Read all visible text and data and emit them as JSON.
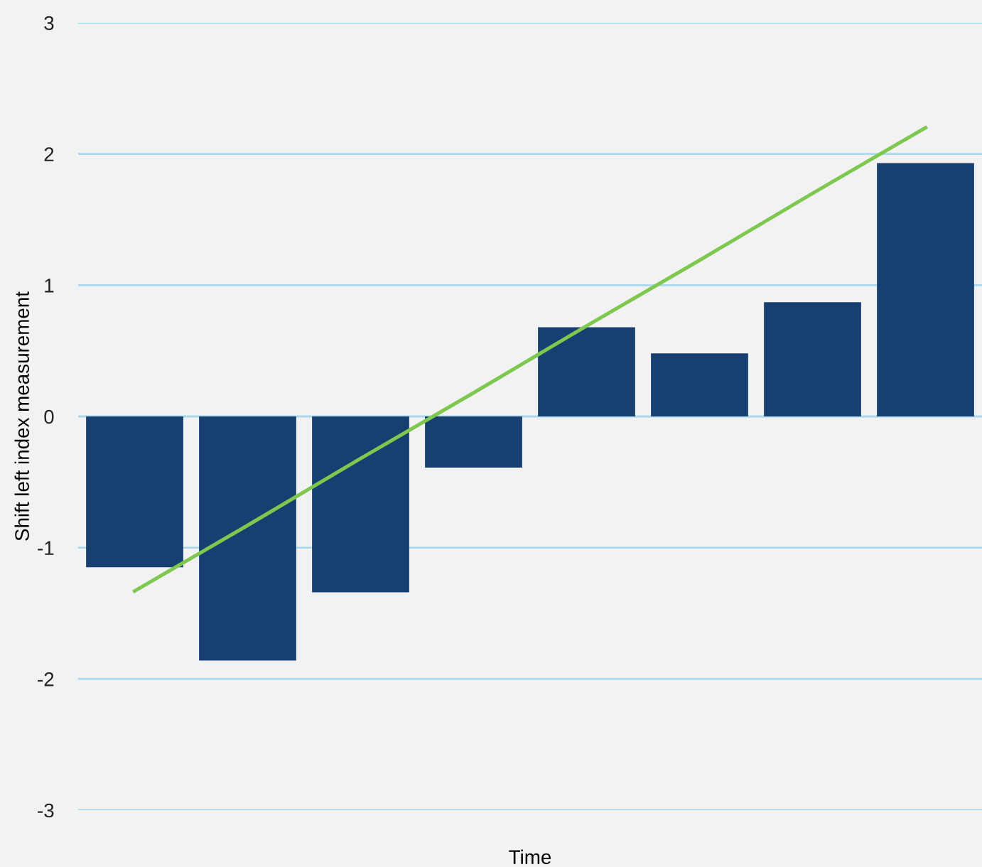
{
  "chart_data": {
    "type": "bar",
    "xlabel": "Time",
    "ylabel": "Shift left index measurement",
    "categories": [
      null,
      null,
      null,
      null,
      null,
      null,
      null,
      null
    ],
    "series": [
      {
        "color": "#173f6f",
        "values": [
          -1.15,
          -1.86,
          -1.34,
          -0.39,
          0.68,
          0.48,
          0.87,
          1.93
        ]
      },
      {
        "type": "line",
        "color": "#7ec850",
        "values": [
          -1.33,
          -0.83,
          -0.32,
          0.18,
          0.69,
          1.19,
          1.7,
          2.2
        ]
      }
    ],
    "ylim": [
      -3,
      3
    ],
    "yticks": [
      -3,
      -2,
      -1,
      0,
      1,
      2,
      3
    ],
    "grid": "y",
    "legend": false,
    "marker": "none",
    "line_style": "solid"
  }
}
